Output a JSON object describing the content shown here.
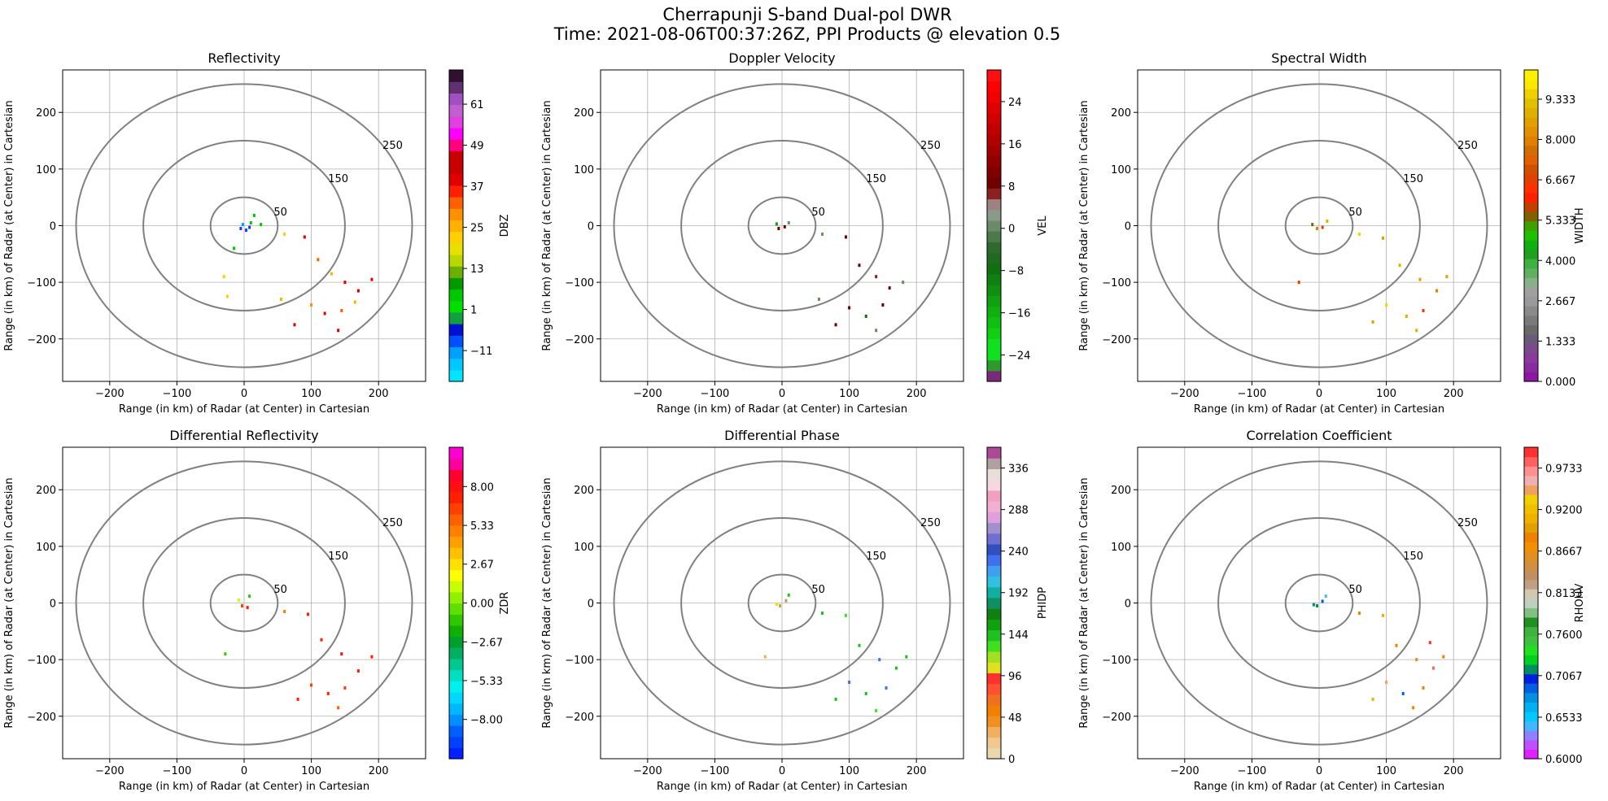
{
  "figure": {
    "title_line1": "Cherrapunji S-band Dual-pol DWR",
    "title_line2": "Time: 2021-08-06T00:37:26Z, PPI Products @ elevation 0.5"
  },
  "chart_data": [
    {
      "type": "scatter",
      "title": "Reflectivity",
      "xlabel": "Range (in km) of Radar (at Center) in Cartesian",
      "ylabel": "Range (in km) of Radar (at Center) in Cartesian",
      "xlim": [
        -270,
        270
      ],
      "ylim": [
        -275,
        275
      ],
      "xticks": [
        -200,
        -100,
        0,
        100,
        200
      ],
      "yticks": [
        -200,
        -100,
        0,
        100,
        200
      ],
      "grid": true,
      "range_rings": [
        50,
        150,
        250
      ],
      "colorbar": {
        "label": "DBZ",
        "min": -20,
        "max": 71,
        "ticks": [
          -11,
          1,
          13,
          25,
          37,
          49,
          61
        ],
        "colors": [
          "#00e5ff",
          "#00c8ff",
          "#00a0ff",
          "#0050ff",
          "#0010d0",
          "#10a040",
          "#00e000",
          "#00c800",
          "#009a00",
          "#6ab000",
          "#b8d800",
          "#e8e000",
          "#ffd000",
          "#ffb000",
          "#ff9000",
          "#ff6000",
          "#ff2000",
          "#e00000",
          "#c80000",
          "#c80000",
          "#ff0080",
          "#ff00ff",
          "#e040e0",
          "#c060d0",
          "#a050c0",
          "#603070",
          "#301030"
        ]
      },
      "ring_labels": [
        "50",
        "150",
        "250"
      ],
      "echoes": [
        {
          "x": -5,
          "y": -5,
          "c": "#1a3cff"
        },
        {
          "x": 3,
          "y": -8,
          "c": "#1a3cff"
        },
        {
          "x": 8,
          "y": -3,
          "c": "#1a3cff"
        },
        {
          "x": -2,
          "y": 2,
          "c": "#00a0ff"
        },
        {
          "x": 10,
          "y": 5,
          "c": "#00c800"
        },
        {
          "x": 15,
          "y": 18,
          "c": "#00c800"
        },
        {
          "x": 25,
          "y": 2,
          "c": "#00c800"
        },
        {
          "x": -15,
          "y": -40,
          "c": "#00c800"
        },
        {
          "x": 60,
          "y": -15,
          "c": "#ffd000"
        },
        {
          "x": 90,
          "y": -20,
          "c": "#e00000"
        },
        {
          "x": 110,
          "y": -60,
          "c": "#ff6000"
        },
        {
          "x": 130,
          "y": -85,
          "c": "#ffb000"
        },
        {
          "x": 150,
          "y": -100,
          "c": "#e00000"
        },
        {
          "x": 170,
          "y": -115,
          "c": "#e00000"
        },
        {
          "x": 190,
          "y": -95,
          "c": "#e00000"
        },
        {
          "x": 100,
          "y": -140,
          "c": "#ff9000"
        },
        {
          "x": 120,
          "y": -155,
          "c": "#e00000"
        },
        {
          "x": 145,
          "y": -150,
          "c": "#ff6000"
        },
        {
          "x": 165,
          "y": -135,
          "c": "#ffb000"
        },
        {
          "x": 75,
          "y": -175,
          "c": "#e00000"
        },
        {
          "x": 140,
          "y": -185,
          "c": "#e00000"
        },
        {
          "x": 55,
          "y": -130,
          "c": "#ffb000"
        },
        {
          "x": -30,
          "y": -90,
          "c": "#ffd000"
        },
        {
          "x": -25,
          "y": -125,
          "c": "#ffd000"
        }
      ]
    },
    {
      "type": "scatter",
      "title": "Doppler Velocity",
      "xlabel": "Range (in km) of Radar (at Center) in Cartesian",
      "ylabel": "Range (in km) of Radar (at Center) in Cartesian",
      "xlim": [
        -270,
        270
      ],
      "ylim": [
        -275,
        275
      ],
      "xticks": [
        -200,
        -100,
        0,
        100,
        200
      ],
      "yticks": [
        -200,
        -100,
        0,
        100,
        200
      ],
      "grid": true,
      "range_rings": [
        50,
        150,
        250
      ],
      "colorbar": {
        "label": "VEL",
        "min": -29,
        "max": 30,
        "ticks": [
          -24,
          -16,
          -8,
          0,
          8,
          16,
          24
        ],
        "colors": [
          "#7a2a7a",
          "#2e9a2e",
          "#10e020",
          "#10e020",
          "#10d010",
          "#10c010",
          "#10b010",
          "#10a010",
          "#109010",
          "#108010",
          "#107010",
          "#206a20",
          "#2e6a2e",
          "#4a7a4a",
          "#6a8a6a",
          "#8a9a8a",
          "#a08080",
          "#8a2020",
          "#700000",
          "#800000",
          "#900000",
          "#a00000",
          "#b00000",
          "#c00000",
          "#d00000",
          "#e00000",
          "#f00000",
          "#ff0000",
          "#ff1010"
        ]
      },
      "ring_labels": [
        "50",
        "150",
        "250"
      ],
      "echoes": [
        {
          "x": -5,
          "y": -5,
          "c": "#700000"
        },
        {
          "x": 4,
          "y": -2,
          "c": "#700000"
        },
        {
          "x": 10,
          "y": 5,
          "c": "#6a8a6a"
        },
        {
          "x": -8,
          "y": 3,
          "c": "#10a010"
        },
        {
          "x": 60,
          "y": -15,
          "c": "#6a8a6a"
        },
        {
          "x": 95,
          "y": -20,
          "c": "#700000"
        },
        {
          "x": 115,
          "y": -70,
          "c": "#700000"
        },
        {
          "x": 140,
          "y": -90,
          "c": "#8a2020"
        },
        {
          "x": 160,
          "y": -110,
          "c": "#700000"
        },
        {
          "x": 180,
          "y": -100,
          "c": "#6a8a6a"
        },
        {
          "x": 100,
          "y": -145,
          "c": "#700000"
        },
        {
          "x": 125,
          "y": -160,
          "c": "#107010"
        },
        {
          "x": 150,
          "y": -140,
          "c": "#700000"
        },
        {
          "x": 80,
          "y": -175,
          "c": "#700000"
        },
        {
          "x": 140,
          "y": -185,
          "c": "#6a8a6a"
        },
        {
          "x": 55,
          "y": -130,
          "c": "#6a8a6a"
        }
      ]
    },
    {
      "type": "scatter",
      "title": "Spectral Width",
      "xlabel": "Range (in km) of Radar (at Center) in Cartesian",
      "ylabel": "Range (in km) of Radar (at Center) in Cartesian",
      "xlim": [
        -270,
        270
      ],
      "ylim": [
        -275,
        275
      ],
      "xticks": [
        -200,
        -100,
        0,
        100,
        200
      ],
      "yticks": [
        -200,
        -100,
        0,
        100,
        200
      ],
      "grid": true,
      "range_rings": [
        50,
        150,
        250
      ],
      "colorbar": {
        "label": "WIDTH",
        "min": 0,
        "max": 10.3,
        "ticks": [
          0.0,
          1.333,
          2.667,
          4.0,
          5.333,
          6.667,
          8.0,
          9.333
        ],
        "tick_labels": [
          "0.000",
          "1.333",
          "2.667",
          "4.000",
          "5.333",
          "6.667",
          "8.000",
          "9.333"
        ],
        "colors": [
          "#8a18a0",
          "#8a2aa0",
          "#8a3a9a",
          "#7a4a8a",
          "#6a5a7a",
          "#6a6a6a",
          "#7a7a7a",
          "#8a8a8a",
          "#9a9a9a",
          "#a0a0a0",
          "#8ab08a",
          "#60b060",
          "#40b040",
          "#20a020",
          "#10b010",
          "#20c000",
          "#40a000",
          "#806000",
          "#c04000",
          "#ff2000",
          "#ff3000",
          "#e04000",
          "#d05000",
          "#e06000",
          "#d07000",
          "#e08000",
          "#e09000",
          "#e0a000",
          "#e0b000",
          "#e0c000",
          "#f0d000",
          "#ffe800",
          "#fff000"
        ]
      },
      "ring_labels": [
        "50",
        "150",
        "250"
      ],
      "echoes": [
        {
          "x": -3,
          "y": -5,
          "c": "#e08000"
        },
        {
          "x": 5,
          "y": -3,
          "c": "#e04000"
        },
        {
          "x": 12,
          "y": 8,
          "c": "#e0b000"
        },
        {
          "x": -10,
          "y": 2,
          "c": "#806000"
        },
        {
          "x": 60,
          "y": -15,
          "c": "#ffd000"
        },
        {
          "x": 95,
          "y": -22,
          "c": "#e0a000"
        },
        {
          "x": 120,
          "y": -70,
          "c": "#e0b000"
        },
        {
          "x": 150,
          "y": -95,
          "c": "#e0a000"
        },
        {
          "x": 175,
          "y": -115,
          "c": "#e08000"
        },
        {
          "x": 190,
          "y": -90,
          "c": "#e0a000"
        },
        {
          "x": 100,
          "y": -140,
          "c": "#ffd000"
        },
        {
          "x": 130,
          "y": -160,
          "c": "#e0b000"
        },
        {
          "x": 155,
          "y": -150,
          "c": "#e04000"
        },
        {
          "x": 80,
          "y": -170,
          "c": "#e0a000"
        },
        {
          "x": 145,
          "y": -185,
          "c": "#e0b000"
        },
        {
          "x": -30,
          "y": -100,
          "c": "#e04000"
        }
      ]
    },
    {
      "type": "scatter",
      "title": "Differential Reflectivity",
      "xlabel": "Range (in km) of Radar (at Center) in Cartesian",
      "ylabel": "Range (in km) of Radar (at Center) in Cartesian",
      "xlim": [
        -270,
        270
      ],
      "ylim": [
        -275,
        275
      ],
      "xticks": [
        -200,
        -100,
        0,
        100,
        200
      ],
      "yticks": [
        -200,
        -100,
        0,
        100,
        200
      ],
      "grid": true,
      "range_rings": [
        50,
        150,
        250
      ],
      "colorbar": {
        "label": "ZDR",
        "min": -10.7,
        "max": 10.7,
        "ticks": [
          -8.0,
          -5.33,
          -2.67,
          0.0,
          2.67,
          5.33,
          8.0
        ],
        "tick_labels": [
          "−8.00",
          "−5.33",
          "−2.67",
          "0.00",
          "2.67",
          "5.33",
          "8.00"
        ],
        "colors": [
          "#0020ff",
          "#0040ff",
          "#0060ff",
          "#0090ff",
          "#00b8ff",
          "#00d8ff",
          "#00f0f0",
          "#00e0c0",
          "#00c890",
          "#00b060",
          "#00a030",
          "#10b000",
          "#30c800",
          "#60e000",
          "#90f000",
          "#c8ff00",
          "#ffff00",
          "#ffe000",
          "#ffc000",
          "#ffa000",
          "#ff8000",
          "#ff6000",
          "#ff4000",
          "#ff2000",
          "#ff1010",
          "#ff0030",
          "#ff00a0",
          "#ff00d0"
        ]
      },
      "ring_labels": [
        "50",
        "150",
        "250"
      ],
      "echoes": [
        {
          "x": -3,
          "y": -5,
          "c": "#ff4000"
        },
        {
          "x": 5,
          "y": -8,
          "c": "#ff2000"
        },
        {
          "x": 8,
          "y": 12,
          "c": "#30c800"
        },
        {
          "x": -8,
          "y": 5,
          "c": "#c8ff00"
        },
        {
          "x": 60,
          "y": -15,
          "c": "#ff8000"
        },
        {
          "x": 95,
          "y": -20,
          "c": "#ff2000"
        },
        {
          "x": 115,
          "y": -65,
          "c": "#ff2000"
        },
        {
          "x": 145,
          "y": -90,
          "c": "#ff1010"
        },
        {
          "x": 170,
          "y": -120,
          "c": "#ff2000"
        },
        {
          "x": 190,
          "y": -95,
          "c": "#ff2000"
        },
        {
          "x": 100,
          "y": -145,
          "c": "#ff4000"
        },
        {
          "x": 125,
          "y": -160,
          "c": "#ff2000"
        },
        {
          "x": 150,
          "y": -150,
          "c": "#ff4000"
        },
        {
          "x": 80,
          "y": -170,
          "c": "#ff2000"
        },
        {
          "x": 140,
          "y": -185,
          "c": "#ff6000"
        },
        {
          "x": -28,
          "y": -90,
          "c": "#30c800"
        }
      ]
    },
    {
      "type": "scatter",
      "title": "Differential Phase",
      "xlabel": "Range (in km) of Radar (at Center) in Cartesian",
      "ylabel": "Range (in km) of Radar (at Center) in Cartesian",
      "xlim": [
        -270,
        270
      ],
      "ylim": [
        -275,
        275
      ],
      "xticks": [
        -200,
        -100,
        0,
        100,
        200
      ],
      "yticks": [
        -200,
        -100,
        0,
        100,
        200
      ],
      "grid": true,
      "range_rings": [
        50,
        150,
        250
      ],
      "colorbar": {
        "label": "PHIDP",
        "min": 0,
        "max": 360,
        "ticks": [
          0,
          48,
          96,
          144,
          192,
          240,
          288,
          336
        ],
        "colors": [
          "#e8d8b0",
          "#f0c890",
          "#f0b060",
          "#f09020",
          "#f08000",
          "#f07020",
          "#ff5030",
          "#ff3030",
          "#e0e020",
          "#a0e020",
          "#40e020",
          "#20c020",
          "#10a010",
          "#108010",
          "#109060",
          "#10b0a0",
          "#30c0e0",
          "#40a0f0",
          "#4070f0",
          "#3050c0",
          "#7070d0",
          "#a090d0",
          "#e0a0e0",
          "#f0b0d0",
          "#f0a0c0",
          "#f8d8e0",
          "#e8e0d8",
          "#b0a0a0",
          "#b04898"
        ]
      },
      "ring_labels": [
        "50",
        "150",
        "250"
      ],
      "echoes": [
        {
          "x": -3,
          "y": -5,
          "c": "#e0a030"
        },
        {
          "x": 6,
          "y": 4,
          "c": "#b0a060"
        },
        {
          "x": 10,
          "y": 14,
          "c": "#20c020"
        },
        {
          "x": -8,
          "y": -2,
          "c": "#e0e020"
        },
        {
          "x": 60,
          "y": -18,
          "c": "#20c020"
        },
        {
          "x": 95,
          "y": -22,
          "c": "#40e020"
        },
        {
          "x": 115,
          "y": -75,
          "c": "#20c020"
        },
        {
          "x": 145,
          "y": -100,
          "c": "#4070f0"
        },
        {
          "x": 170,
          "y": -115,
          "c": "#20c020"
        },
        {
          "x": 185,
          "y": -95,
          "c": "#20c020"
        },
        {
          "x": 100,
          "y": -140,
          "c": "#4070f0"
        },
        {
          "x": 125,
          "y": -160,
          "c": "#20c020"
        },
        {
          "x": 155,
          "y": -150,
          "c": "#4070f0"
        },
        {
          "x": 80,
          "y": -170,
          "c": "#20c020"
        },
        {
          "x": 140,
          "y": -190,
          "c": "#40e020"
        },
        {
          "x": -25,
          "y": -95,
          "c": "#f0b060"
        }
      ]
    },
    {
      "type": "scatter",
      "title": "Correlation Coefficient",
      "xlabel": "Range (in km) of Radar (at Center) in Cartesian",
      "ylabel": "Range (in km) of Radar (at Center) in Cartesian",
      "xlim": [
        -270,
        270
      ],
      "ylim": [
        -275,
        275
      ],
      "xticks": [
        -200,
        -100,
        0,
        100,
        200
      ],
      "yticks": [
        -200,
        -100,
        0,
        100,
        200
      ],
      "grid": true,
      "range_rings": [
        50,
        150,
        250
      ],
      "colorbar": {
        "label": "RHOHV",
        "min": 0.6,
        "max": 1.0,
        "ticks": [
          0.6,
          0.6533,
          0.7067,
          0.76,
          0.8133,
          0.8667,
          0.92,
          0.9733
        ],
        "tick_labels": [
          "0.6000",
          "0.6533",
          "0.7067",
          "0.7600",
          "0.8133",
          "0.8667",
          "0.9200",
          "0.9733"
        ],
        "colors": [
          "#e020ff",
          "#c050ff",
          "#9080ff",
          "#40b8ff",
          "#00c8ff",
          "#00b0f0",
          "#0090e0",
          "#0060e0",
          "#0020e0",
          "#009060",
          "#00d020",
          "#20e020",
          "#40c040",
          "#40b040",
          "#209020",
          "#80c080",
          "#c0d0c0",
          "#d0c8b0",
          "#c0a080",
          "#c09060",
          "#d09040",
          "#e09020",
          "#f09000",
          "#f08000",
          "#e0a000",
          "#f0b000",
          "#f0c000",
          "#f0d000",
          "#f0a060",
          "#f0b0b0",
          "#ff9090",
          "#ff6060",
          "#ff3030"
        ]
      },
      "ring_labels": [
        "50",
        "150",
        "250"
      ],
      "echoes": [
        {
          "x": -3,
          "y": -5,
          "c": "#009060"
        },
        {
          "x": 5,
          "y": 3,
          "c": "#0060e0"
        },
        {
          "x": 10,
          "y": 12,
          "c": "#40b8ff"
        },
        {
          "x": -8,
          "y": -3,
          "c": "#009060"
        },
        {
          "x": 60,
          "y": -18,
          "c": "#f08000"
        },
        {
          "x": 95,
          "y": -22,
          "c": "#f0b000"
        },
        {
          "x": 115,
          "y": -75,
          "c": "#f08000"
        },
        {
          "x": 145,
          "y": -100,
          "c": "#e09020"
        },
        {
          "x": 170,
          "y": -115,
          "c": "#ff6060"
        },
        {
          "x": 185,
          "y": -95,
          "c": "#f08000"
        },
        {
          "x": 100,
          "y": -140,
          "c": "#f0a060"
        },
        {
          "x": 125,
          "y": -160,
          "c": "#0060e0"
        },
        {
          "x": 155,
          "y": -150,
          "c": "#f08000"
        },
        {
          "x": 80,
          "y": -170,
          "c": "#f0b000"
        },
        {
          "x": 140,
          "y": -185,
          "c": "#f08000"
        },
        {
          "x": 165,
          "y": -70,
          "c": "#ff3030"
        }
      ]
    }
  ]
}
